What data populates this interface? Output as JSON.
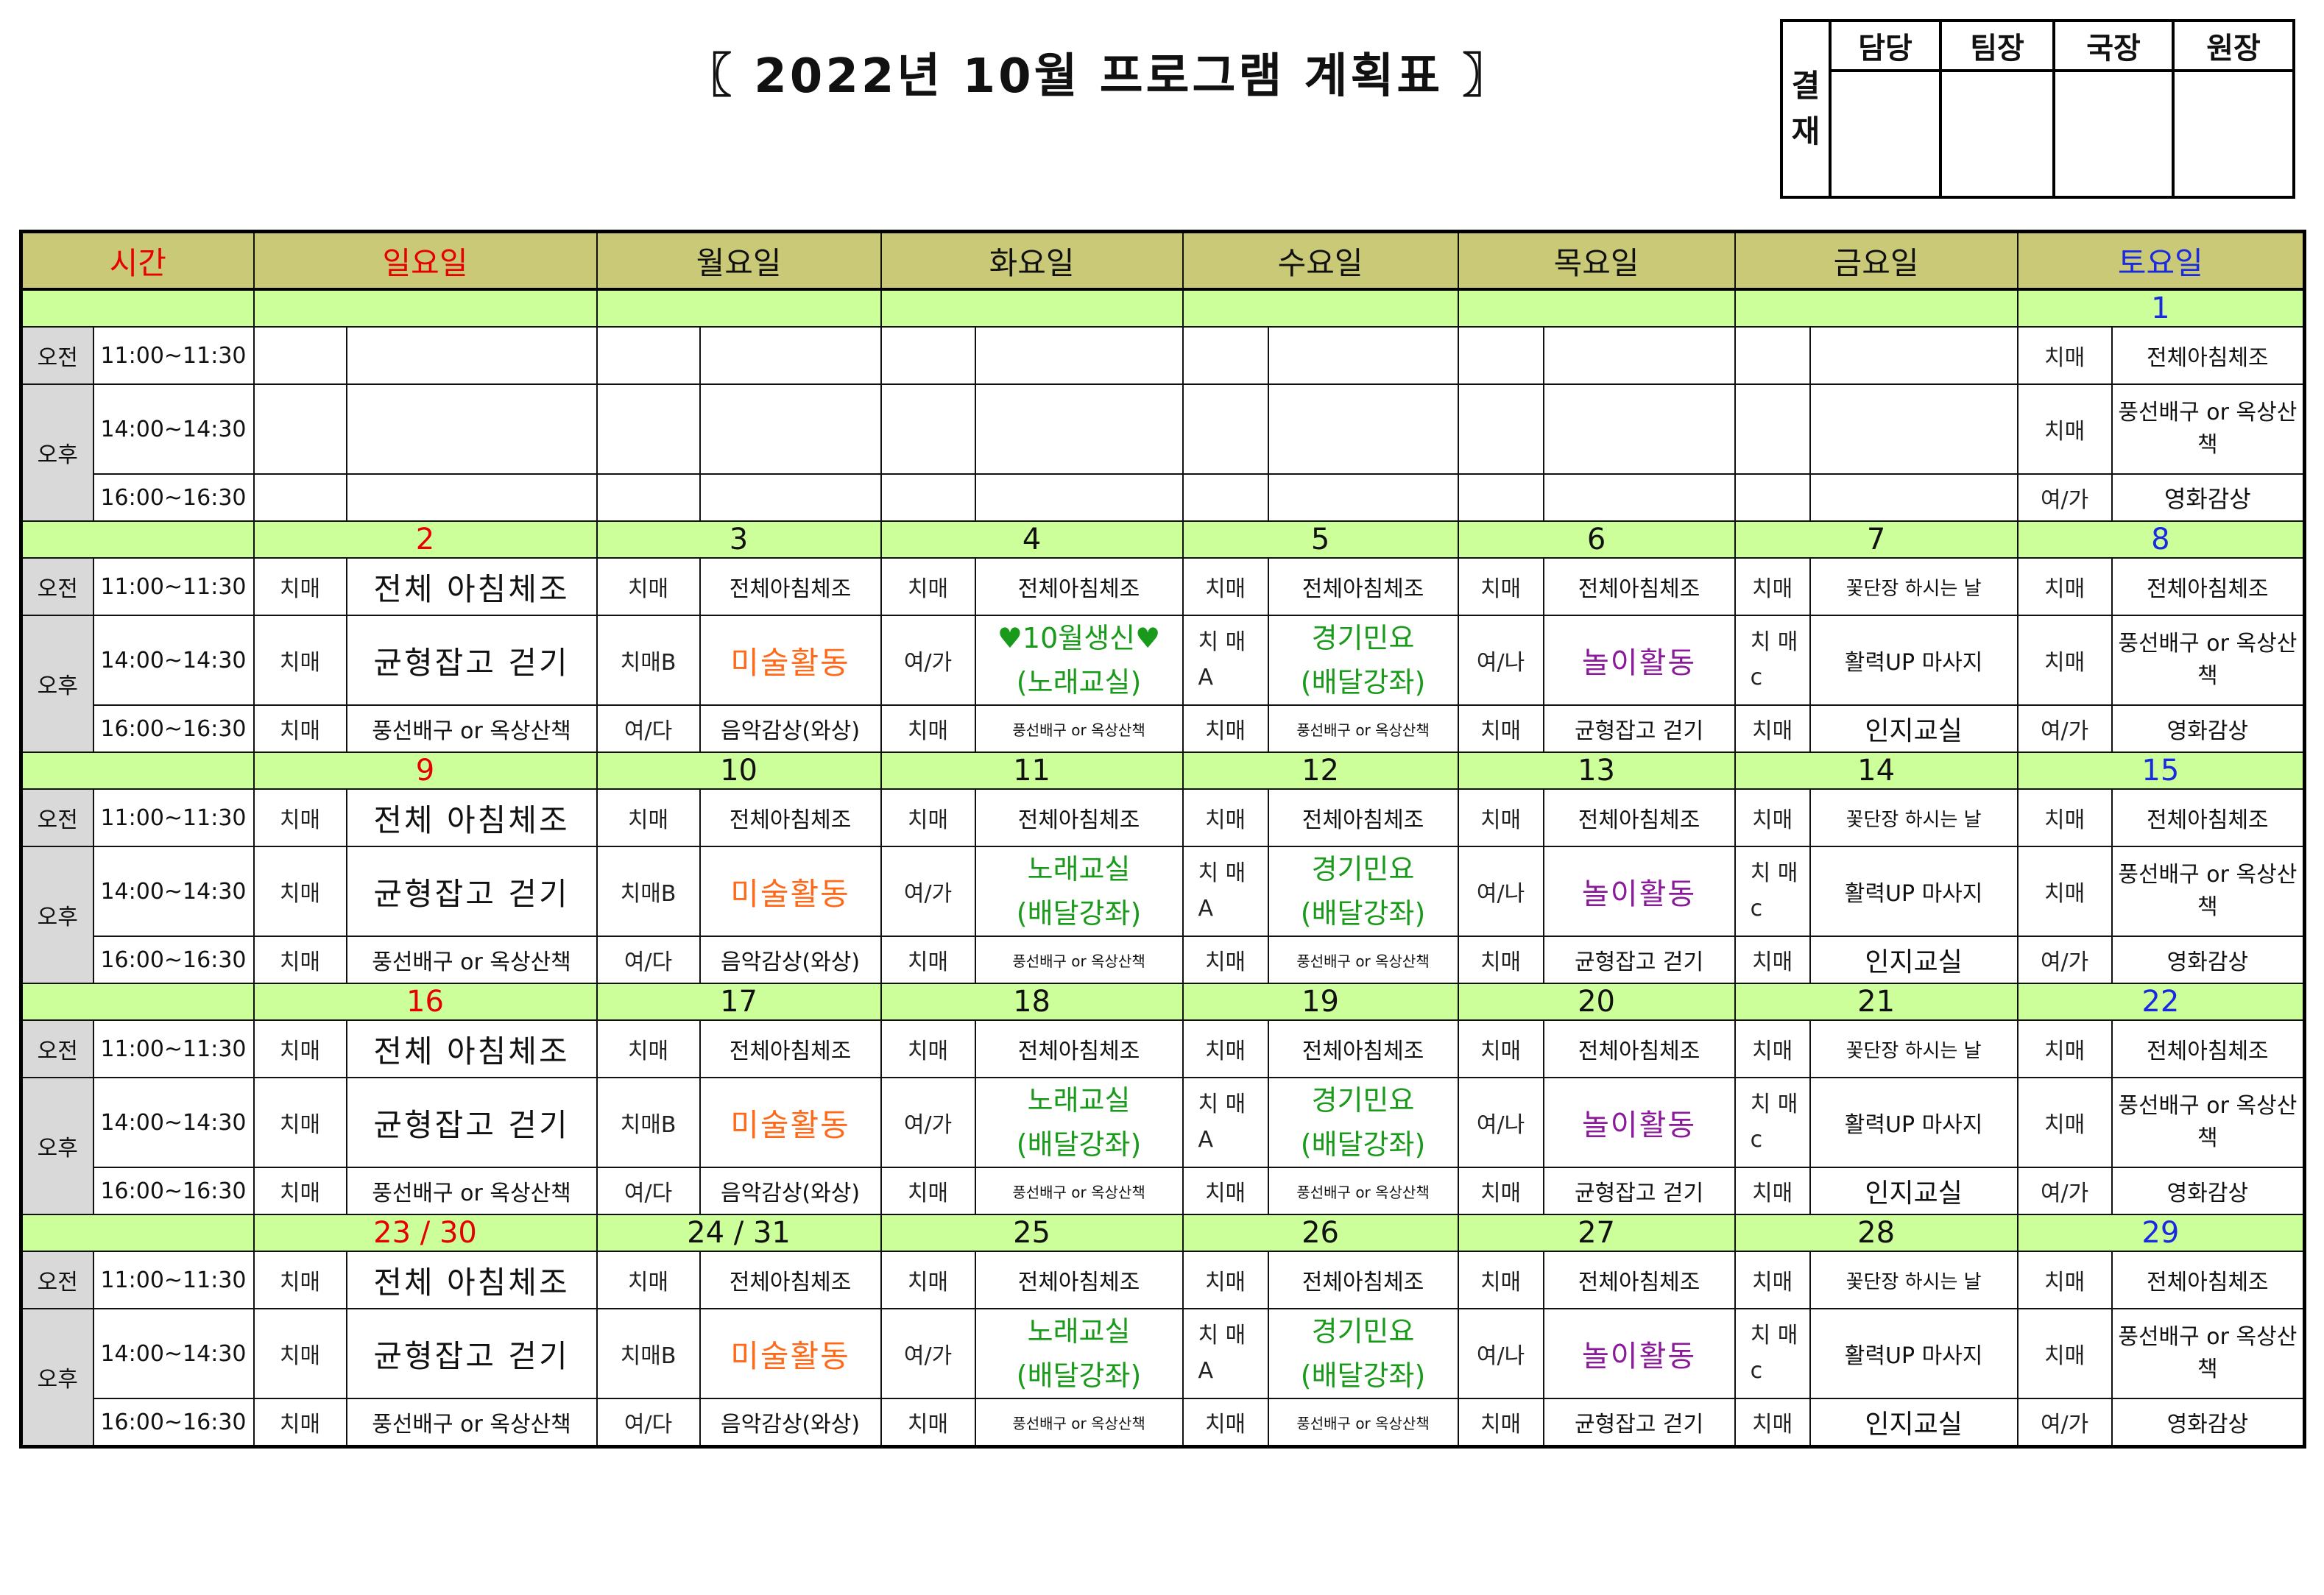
{
  "title": "〖 2022년 10월 프로그램 계획표 〗",
  "approval": {
    "label": "결재",
    "roles": [
      "담당",
      "팀장",
      "국장",
      "원장"
    ]
  },
  "header": {
    "time": "시간",
    "days": [
      "일요일",
      "월요일",
      "화요일",
      "수요일",
      "목요일",
      "금요일",
      "토요일"
    ]
  },
  "periods": {
    "am": "오전",
    "pm": "오후"
  },
  "times": [
    "11:00~11:30",
    "14:00~14:30",
    "16:00~16:30"
  ],
  "colors": {
    "header_bg": "#c9c978",
    "date_bg": "#ccff99",
    "period_bg": "#d9d9d9",
    "sunday": "#e60000",
    "saturday": "#1a2ae0",
    "green_activity": "#1a9a1a",
    "orange_activity": "#ff6a1a",
    "purple_activity": "#8a1a9a"
  },
  "week1": {
    "saturday_date": "1",
    "saturday": [
      {
        "tag": "치매",
        "activity": "전체아침체조"
      },
      {
        "tag": "치매",
        "activity": "풍선배구 or 옥상산책"
      },
      {
        "tag": "여/가",
        "activity": "영화감상"
      }
    ]
  },
  "weeks": [
    {
      "dates": [
        "2",
        "3",
        "4",
        "5",
        "6",
        "7",
        "8"
      ],
      "wednesday_line1": "♥10월생신♥",
      "wednesday_line2": "(노래교실)"
    },
    {
      "dates": [
        "9",
        "10",
        "11",
        "12",
        "13",
        "14",
        "15"
      ],
      "wednesday_line1": "노래교실",
      "wednesday_line2": "(배달강좌)"
    },
    {
      "dates": [
        "16",
        "17",
        "18",
        "19",
        "20",
        "21",
        "22"
      ],
      "wednesday_line1": "노래교실",
      "wednesday_line2": "(배달강좌)"
    },
    {
      "dates": [
        "23 / 30",
        "24 / 31",
        "25",
        "26",
        "27",
        "28",
        "29"
      ],
      "wednesday_line1": "노래교실",
      "wednesday_line2": "(배달강좌)"
    }
  ],
  "schedule": {
    "sun": {
      "am": {
        "tag": "치매",
        "act": "전체 아침체조"
      },
      "pm1": {
        "tag": "치매",
        "act": "균형잡고 걷기"
      },
      "pm2": {
        "tag": "치매",
        "act": "풍선배구 or 옥상산책"
      }
    },
    "mon": {
      "am": {
        "tag": "치매",
        "act": "전체아침체조"
      },
      "pm1": {
        "tag": "치매B",
        "act": "미술활동"
      },
      "pm2": {
        "tag": "여/다",
        "act": "음악감상(와상)"
      }
    },
    "tue": {
      "am": {
        "tag": "치매",
        "act": "전체아침체조"
      },
      "pm1": {
        "tag": "여/가"
      },
      "pm2": {
        "tag": "치매",
        "act": "풍선배구 or 옥상산책"
      }
    },
    "wed": {
      "am": {
        "tag": "치매",
        "act": "전체아침체조"
      },
      "pm1": {
        "tag": "치 매 A",
        "act1": "경기민요",
        "act2": "(배달강좌)"
      },
      "pm2": {
        "tag": "치매",
        "act": "풍선배구 or 옥상산책"
      }
    },
    "thu": {
      "am": {
        "tag": "치매",
        "act": "전체아침체조"
      },
      "pm1": {
        "tag": "여/나",
        "act": "놀이활동"
      },
      "pm2": {
        "tag": "치매",
        "act": "균형잡고 걷기"
      }
    },
    "fri": {
      "am": {
        "tag": "치매",
        "act": "꽃단장 하시는 날"
      },
      "pm1": {
        "tag": "치 매c",
        "act": "활력UP 마사지"
      },
      "pm2": {
        "tag": "치매",
        "act": "인지교실"
      }
    },
    "sat": {
      "am": {
        "tag": "치매",
        "act": "전체아침체조"
      },
      "pm1": {
        "tag": "치매",
        "act": "풍선배구 or 옥상산책"
      },
      "pm2": {
        "tag": "여/가",
        "act": "영화감상"
      }
    }
  }
}
